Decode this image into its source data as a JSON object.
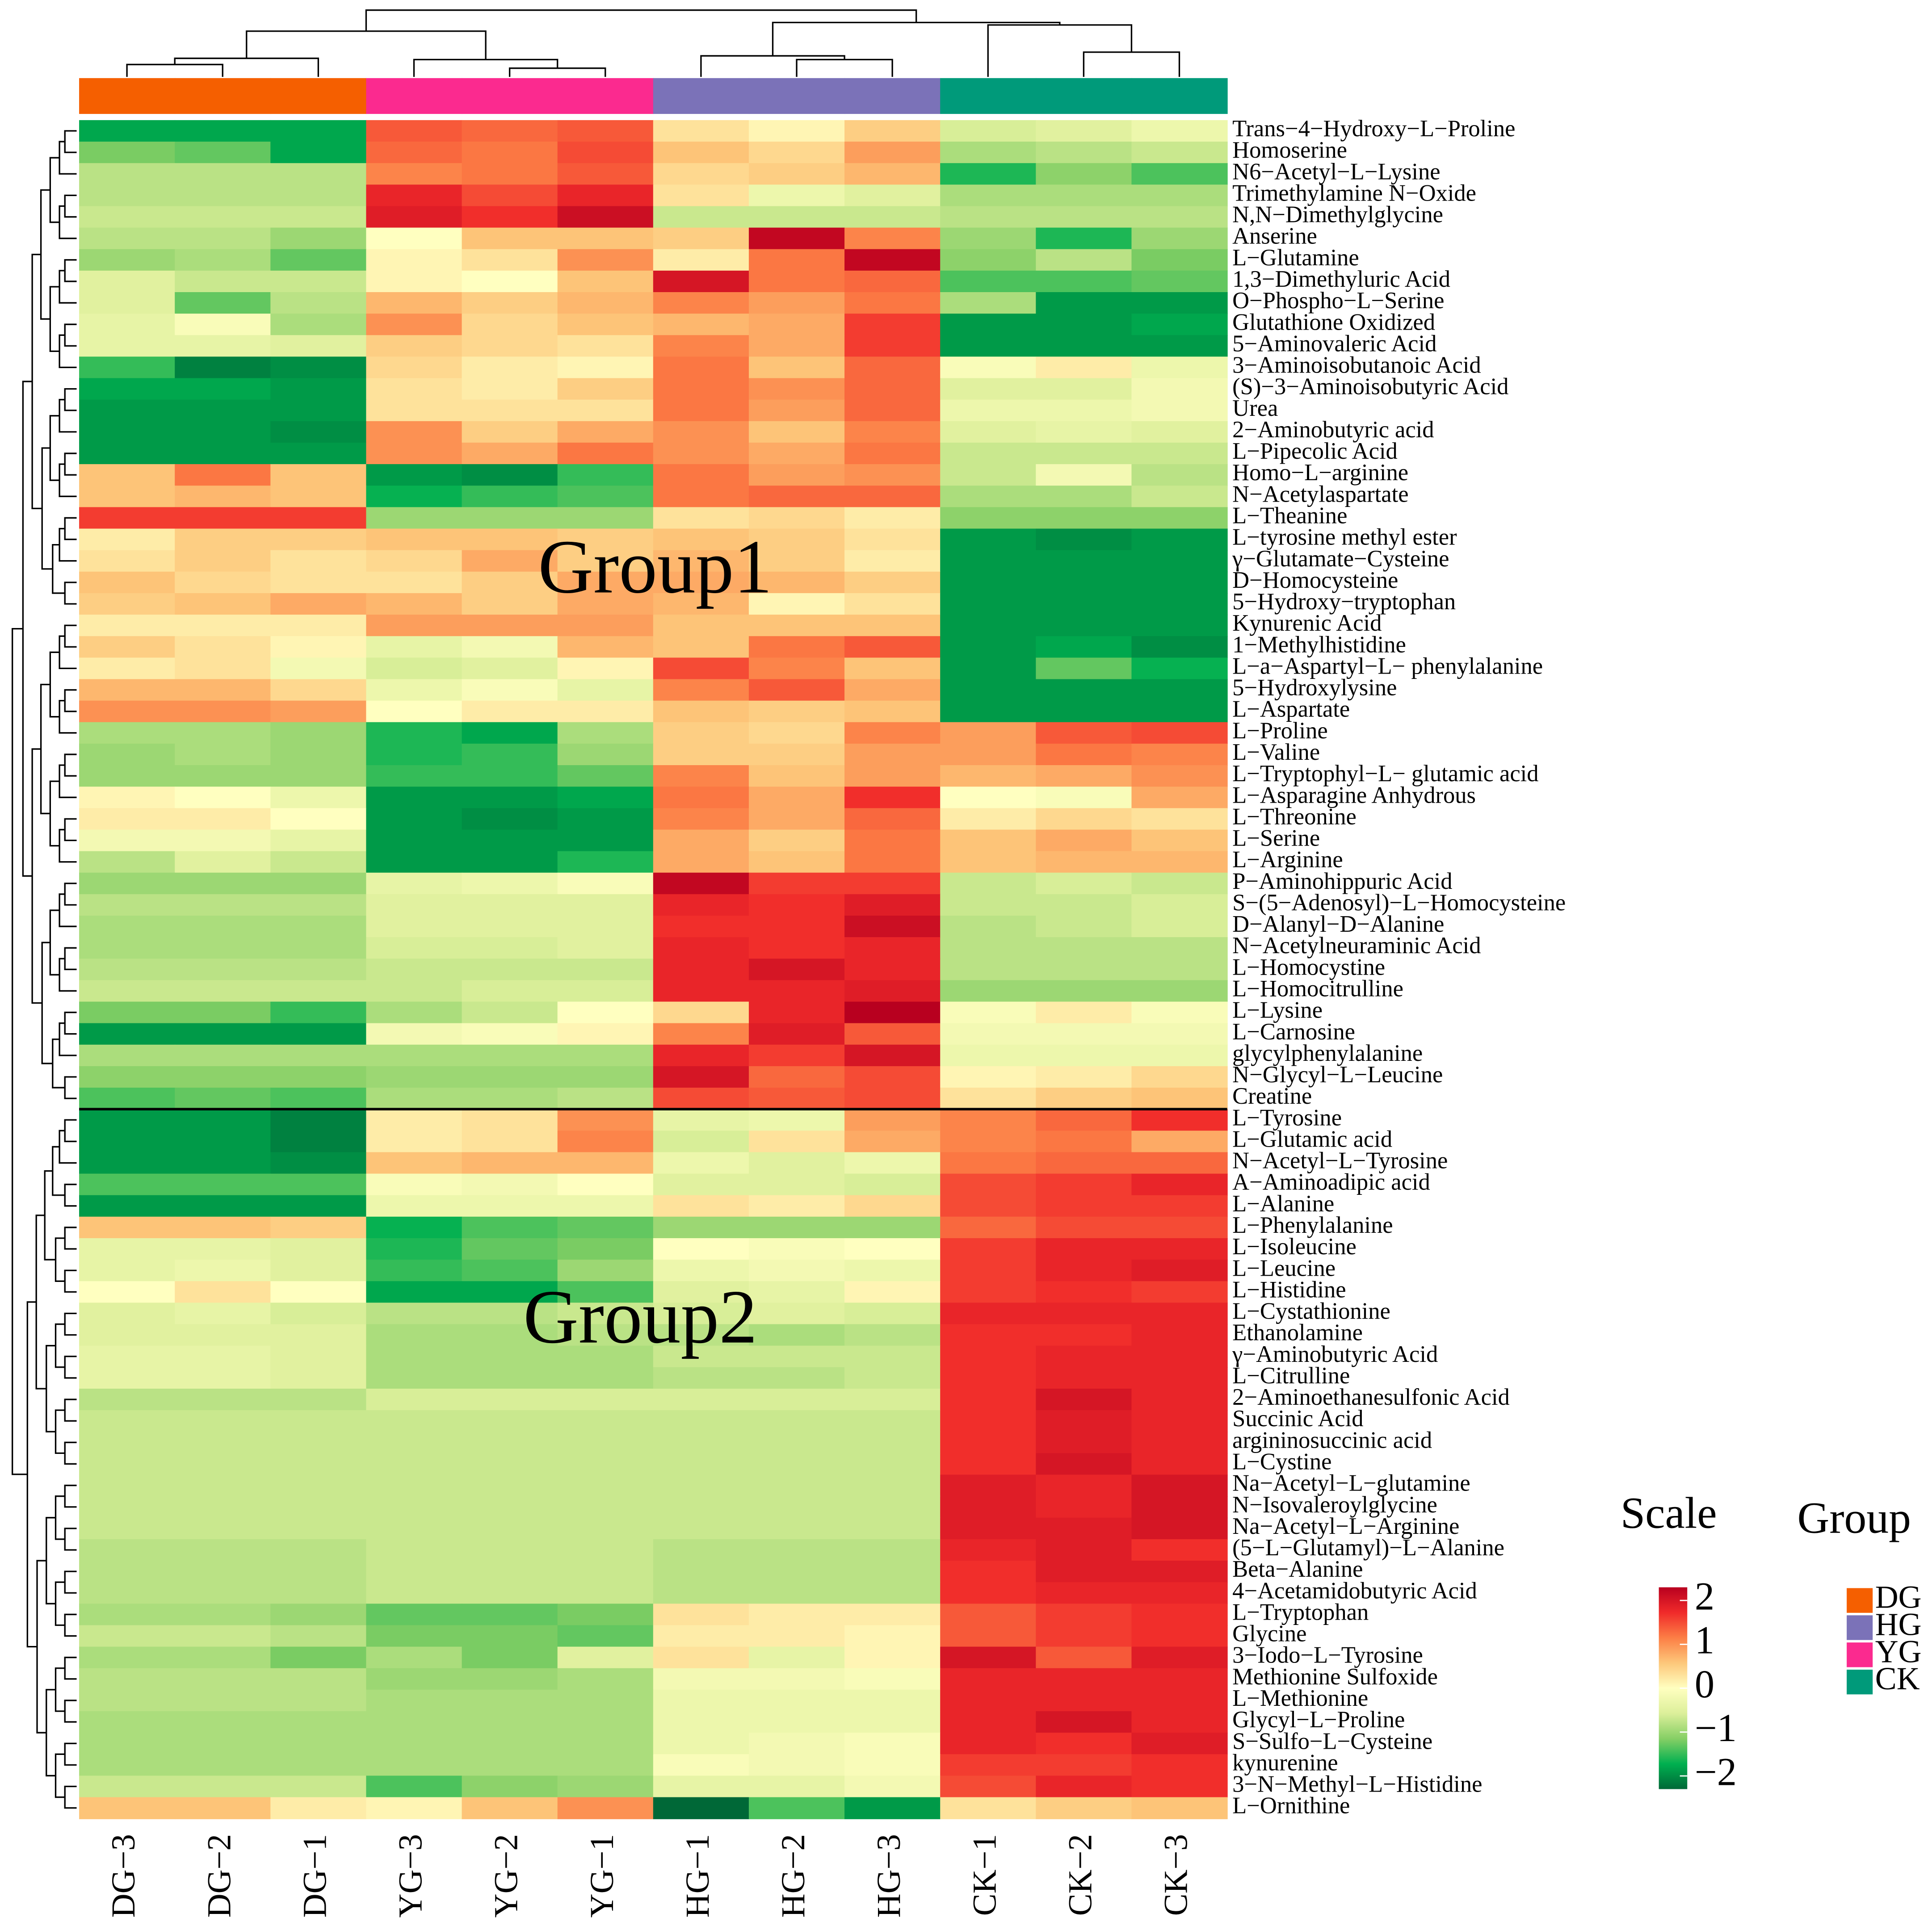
{
  "chart_data": {
    "type": "heatmap",
    "x_categories": [
      "DG−3",
      "DG−2",
      "DG−1",
      "YG−3",
      "YG−2",
      "YG−1",
      "HG−1",
      "HG−2",
      "HG−3",
      "CK−1",
      "CK−2",
      "CK−3"
    ],
    "y_categories": [
      "Trans−4−Hydroxy−L−Proline",
      "Homoserine",
      "N6−Acetyl−L−Lysine",
      "Trimethylamine N−Oxide",
      "N,N−Dimethylglycine",
      "Anserine",
      "L−Glutamine",
      "1,3−Dimethyluric Acid",
      "O−Phospho−L−Serine",
      "Glutathione Oxidized",
      "5−Aminovaleric Acid",
      "3−Aminoisobutanoic Acid",
      "(S)−3−Aminoisobutyric Acid",
      "Urea",
      "2−Aminobutyric acid",
      "L−Pipecolic Acid",
      "Homo−L−arginine",
      "N−Acetylaspartate",
      "L−Theanine",
      "L−tyrosine methyl ester",
      "γ−Glutamate−Cysteine",
      "D−Homocysteine",
      "5−Hydroxy−tryptophan",
      "Kynurenic Acid",
      "1−Methylhistidine",
      "L−a−Aspartyl−L− phenylalanine",
      "5−Hydroxylysine",
      "L−Aspartate",
      "L−Proline",
      "L−Valine",
      "L−Tryptophyl−L− glutamic acid",
      "L−Asparagine Anhydrous",
      "L−Threonine",
      "L−Serine",
      "L−Arginine",
      "P−Aminohippuric Acid",
      "S−(5−Adenosyl)−L−Homocysteine",
      "D−Alanyl−D−Alanine",
      "N−Acetylneuraminic Acid",
      "L−Homocystine",
      "L−Homocitrulline",
      "L−Lysine",
      "L−Carnosine",
      "glycylphenylalanine",
      "N−Glycyl−L−Leucine",
      "Creatine",
      "L−Tyrosine",
      "L−Glutamic acid",
      "N−Acetyl−L−Tyrosine",
      "A−Aminoadipic acid",
      "L−Alanine",
      "L−Phenylalanine",
      "L−Isoleucine",
      "L−Leucine",
      "L−Histidine",
      "L−Cystathionine",
      "Ethanolamine",
      "γ−Aminobutyric Acid",
      "L−Citrulline",
      "2−Aminoethanesulfonic Acid",
      "Succinic Acid",
      "argininosuccinic acid",
      "L−Cystine",
      "Na−Acetyl−L−glutamine",
      "N−Isovaleroylglycine",
      "Na−Acetyl−L−Arginine",
      "(5−L−Glutamyl)−L−Alanine",
      "Beta−Alanine",
      "4−Acetamidobutyric Acid",
      "L−Tryptophan",
      "Glycine",
      "3−Iodo−L−Tyrosine",
      "Methionine Sulfoxide",
      "L−Methionine",
      "Glycyl−L−Proline",
      "S−Sulfo−L−Cysteine",
      "kynurenine",
      "3−N−Methyl−L−Histidine",
      "L−Ornithine"
    ],
    "values": [
      [
        -1.8,
        -1.8,
        -1.8,
        1.4,
        1.3,
        1.4,
        0.3,
        0.1,
        0.5,
        -0.6,
        -0.5,
        -0.3
      ],
      [
        -1.2,
        -1.3,
        -1.8,
        1.3,
        1.2,
        1.5,
        0.6,
        0.4,
        0.9,
        -0.9,
        -0.8,
        -0.7
      ],
      [
        -0.8,
        -0.8,
        -0.8,
        1.1,
        1.2,
        1.4,
        0.4,
        0.5,
        0.7,
        -1.6,
        -1.1,
        -1.4
      ],
      [
        -0.8,
        -0.8,
        -0.8,
        1.8,
        1.5,
        1.8,
        0.3,
        -0.3,
        -0.5,
        -0.9,
        -0.9,
        -0.9
      ],
      [
        -0.7,
        -0.7,
        -0.7,
        1.9,
        1.7,
        2.1,
        -0.7,
        -0.7,
        -0.7,
        -0.8,
        -0.8,
        -0.8
      ],
      [
        -0.8,
        -0.8,
        -1.0,
        0.0,
        0.6,
        0.6,
        0.5,
        2.2,
        1.1,
        -1.0,
        -1.6,
        -1.0
      ],
      [
        -1.0,
        -0.9,
        -1.3,
        0.1,
        0.3,
        1.0,
        0.2,
        1.2,
        2.2,
        -1.1,
        -0.8,
        -1.2
      ],
      [
        -0.5,
        -0.7,
        -0.7,
        0.1,
        0.0,
        0.6,
        2.0,
        1.2,
        1.3,
        -1.4,
        -1.4,
        -1.3
      ],
      [
        -0.5,
        -1.3,
        -0.8,
        0.7,
        0.5,
        0.7,
        1.1,
        0.9,
        1.2,
        -0.9,
        -1.9,
        -1.9
      ],
      [
        -0.4,
        -0.1,
        -0.9,
        1.0,
        0.4,
        0.6,
        0.7,
        0.8,
        1.6,
        -1.9,
        -1.9,
        -1.8
      ],
      [
        -0.4,
        -0.4,
        -0.5,
        0.5,
        0.4,
        0.3,
        1.1,
        0.8,
        1.6,
        -1.9,
        -1.9,
        -1.9
      ],
      [
        -1.5,
        -2.1,
        -2.0,
        0.4,
        0.2,
        0.1,
        1.2,
        0.6,
        1.3,
        -0.1,
        0.2,
        -0.3
      ],
      [
        -1.8,
        -1.8,
        -1.9,
        0.3,
        0.2,
        0.5,
        1.2,
        1.0,
        1.3,
        -0.5,
        -0.5,
        -0.2
      ],
      [
        -1.9,
        -1.9,
        -1.9,
        0.3,
        0.3,
        0.3,
        1.2,
        0.9,
        1.3,
        -0.3,
        -0.3,
        -0.2
      ],
      [
        -1.9,
        -1.9,
        -2.0,
        1.0,
        0.5,
        0.8,
        1.0,
        0.6,
        1.1,
        -0.5,
        -0.4,
        -0.5
      ],
      [
        -1.9,
        -1.9,
        -1.9,
        1.0,
        0.8,
        1.2,
        1.0,
        0.8,
        1.2,
        -0.7,
        -0.7,
        -0.7
      ],
      [
        0.6,
        1.2,
        0.6,
        -1.9,
        -2.0,
        -1.5,
        1.2,
        0.9,
        1.0,
        -0.7,
        -0.2,
        -0.8
      ],
      [
        0.6,
        0.7,
        0.6,
        -1.7,
        -1.5,
        -1.4,
        1.2,
        1.3,
        1.3,
        -0.9,
        -0.9,
        -0.7
      ],
      [
        1.6,
        1.6,
        1.6,
        -1.0,
        -1.0,
        -1.0,
        0.3,
        0.4,
        0.2,
        -1.1,
        -1.1,
        -1.1
      ],
      [
        0.2,
        0.5,
        0.5,
        0.6,
        0.6,
        0.5,
        0.6,
        0.5,
        0.3,
        -1.9,
        -2.0,
        -1.9
      ],
      [
        0.3,
        0.5,
        0.3,
        0.4,
        0.8,
        0.5,
        0.7,
        0.5,
        0.2,
        -1.9,
        -1.9,
        -1.9
      ],
      [
        0.6,
        0.4,
        0.3,
        0.3,
        0.5,
        0.8,
        0.8,
        0.7,
        0.5,
        -1.9,
        -1.9,
        -1.9
      ],
      [
        0.5,
        0.6,
        0.8,
        0.7,
        0.5,
        0.8,
        0.7,
        0.1,
        0.3,
        -1.9,
        -1.9,
        -1.9
      ],
      [
        0.2,
        0.2,
        0.2,
        0.9,
        0.9,
        0.9,
        0.6,
        0.6,
        0.6,
        -1.9,
        -1.9,
        -1.9
      ],
      [
        0.5,
        0.3,
        0.1,
        -0.4,
        -0.2,
        0.7,
        0.6,
        1.2,
        1.4,
        -1.9,
        -1.8,
        -2.0
      ],
      [
        0.2,
        0.3,
        -0.2,
        -0.6,
        -0.5,
        0.1,
        1.5,
        1.1,
        0.6,
        -1.9,
        -1.3,
        -1.7
      ],
      [
        0.7,
        0.7,
        0.4,
        -0.3,
        -0.1,
        -0.4,
        1.1,
        1.4,
        0.8,
        -1.9,
        -1.9,
        -1.9
      ],
      [
        1.0,
        1.0,
        0.9,
        0.0,
        0.2,
        0.2,
        0.6,
        0.5,
        0.6,
        -1.9,
        -1.9,
        -1.9
      ],
      [
        -0.9,
        -0.9,
        -1.0,
        -1.6,
        -1.8,
        -0.9,
        0.5,
        0.4,
        1.1,
        0.9,
        1.4,
        1.5
      ],
      [
        -1.0,
        -0.9,
        -1.0,
        -1.6,
        -1.5,
        -1.0,
        0.5,
        0.5,
        0.9,
        0.9,
        1.2,
        1.1
      ],
      [
        -1.0,
        -1.0,
        -1.0,
        -1.5,
        -1.5,
        -1.3,
        1.1,
        0.6,
        0.9,
        0.7,
        0.8,
        1.0
      ],
      [
        0.1,
        0.0,
        -0.3,
        -1.9,
        -1.9,
        -1.8,
        1.2,
        0.8,
        1.7,
        0.0,
        -0.1,
        0.8
      ],
      [
        0.2,
        0.2,
        0.0,
        -1.9,
        -2.0,
        -1.9,
        1.1,
        0.8,
        1.3,
        0.2,
        0.4,
        0.3
      ],
      [
        -0.2,
        -0.2,
        -0.4,
        -1.9,
        -1.9,
        -1.9,
        0.8,
        0.5,
        1.2,
        0.6,
        0.8,
        0.6
      ],
      [
        -0.8,
        -0.5,
        -0.7,
        -1.9,
        -1.9,
        -1.6,
        0.8,
        0.6,
        1.2,
        0.6,
        0.7,
        0.7
      ],
      [
        -1.0,
        -1.0,
        -1.0,
        -0.4,
        -0.3,
        -0.1,
        2.2,
        1.6,
        1.6,
        -0.7,
        -0.6,
        -0.7
      ],
      [
        -0.8,
        -0.8,
        -0.8,
        -0.5,
        -0.5,
        -0.5,
        1.8,
        1.7,
        1.9,
        -0.7,
        -0.7,
        -0.6
      ],
      [
        -0.9,
        -0.9,
        -0.9,
        -0.5,
        -0.5,
        -0.5,
        1.7,
        1.7,
        2.1,
        -0.8,
        -0.7,
        -0.6
      ],
      [
        -0.9,
        -0.9,
        -0.9,
        -0.6,
        -0.6,
        -0.5,
        1.8,
        1.7,
        1.8,
        -0.8,
        -0.8,
        -0.8
      ],
      [
        -0.8,
        -0.8,
        -0.8,
        -0.7,
        -0.7,
        -0.7,
        1.8,
        2.0,
        1.8,
        -0.8,
        -0.8,
        -0.8
      ],
      [
        -0.7,
        -0.7,
        -0.7,
        -0.7,
        -0.6,
        -0.6,
        1.8,
        1.8,
        1.9,
        -1.0,
        -1.0,
        -1.0
      ],
      [
        -1.2,
        -1.2,
        -1.5,
        -0.9,
        -0.7,
        0.0,
        0.4,
        1.8,
        2.3,
        -0.1,
        0.2,
        -0.1
      ],
      [
        -1.9,
        -1.9,
        -1.9,
        -0.2,
        -0.1,
        0.1,
        1.1,
        1.9,
        1.4,
        -0.2,
        -0.2,
        -0.2
      ],
      [
        -0.9,
        -0.9,
        -0.9,
        -0.9,
        -0.9,
        -0.9,
        1.8,
        1.6,
        2.0,
        -0.3,
        -0.3,
        -0.3
      ],
      [
        -1.1,
        -1.1,
        -1.1,
        -1.0,
        -1.0,
        -1.0,
        2.0,
        1.3,
        1.5,
        0.1,
        0.2,
        0.4
      ],
      [
        -1.4,
        -1.3,
        -1.4,
        -0.9,
        -0.9,
        -0.8,
        1.5,
        1.4,
        1.5,
        0.3,
        0.5,
        0.6
      ],
      [
        -1.9,
        -1.9,
        -2.1,
        0.2,
        0.3,
        1.0,
        -0.4,
        -0.3,
        0.9,
        1.1,
        1.3,
        1.7
      ],
      [
        -1.9,
        -1.9,
        -2.1,
        0.2,
        0.3,
        1.1,
        -0.6,
        0.3,
        0.8,
        1.1,
        1.2,
        0.8
      ],
      [
        -1.9,
        -1.9,
        -2.0,
        0.6,
        0.7,
        0.7,
        -0.3,
        -0.5,
        -0.3,
        1.2,
        1.3,
        1.3
      ],
      [
        -1.4,
        -1.4,
        -1.4,
        -0.1,
        -0.2,
        0.0,
        -0.5,
        -0.5,
        -0.6,
        1.5,
        1.6,
        1.8
      ],
      [
        -1.9,
        -1.9,
        -1.9,
        -0.3,
        -0.3,
        -0.3,
        0.3,
        0.2,
        0.4,
        1.5,
        1.6,
        1.6
      ],
      [
        0.6,
        0.6,
        0.5,
        -1.7,
        -1.4,
        -1.3,
        -1.0,
        -1.0,
        -1.0,
        1.3,
        1.5,
        1.5
      ],
      [
        -0.4,
        -0.4,
        -0.5,
        -1.6,
        -1.3,
        -1.2,
        0.0,
        -0.1,
        0.0,
        1.6,
        1.8,
        1.8
      ],
      [
        -0.4,
        -0.3,
        -0.5,
        -1.5,
        -1.4,
        -1.0,
        -0.3,
        -0.2,
        -0.3,
        1.6,
        1.8,
        1.9
      ],
      [
        0.0,
        0.3,
        0.0,
        -1.8,
        -1.8,
        -1.4,
        -0.5,
        -0.4,
        0.1,
        1.6,
        1.7,
        1.6
      ],
      [
        -0.5,
        -0.4,
        -0.6,
        -0.8,
        -0.8,
        -0.7,
        -0.6,
        -0.5,
        -0.6,
        1.8,
        1.8,
        1.8
      ],
      [
        -0.5,
        -0.5,
        -0.5,
        -0.9,
        -0.9,
        -0.8,
        -0.8,
        -0.9,
        -0.8,
        1.7,
        1.7,
        1.8
      ],
      [
        -0.4,
        -0.4,
        -0.5,
        -0.9,
        -0.9,
        -0.9,
        -0.7,
        -0.7,
        -0.7,
        1.7,
        1.8,
        1.8
      ],
      [
        -0.4,
        -0.4,
        -0.5,
        -0.9,
        -0.9,
        -0.9,
        -0.8,
        -0.8,
        -0.7,
        1.7,
        1.8,
        1.8
      ],
      [
        -0.8,
        -0.8,
        -0.8,
        -0.6,
        -0.6,
        -0.6,
        -0.6,
        -0.6,
        -0.6,
        1.7,
        2.0,
        1.8
      ],
      [
        -0.7,
        -0.7,
        -0.7,
        -0.7,
        -0.7,
        -0.7,
        -0.7,
        -0.7,
        -0.7,
        1.7,
        1.9,
        1.8
      ],
      [
        -0.7,
        -0.7,
        -0.7,
        -0.7,
        -0.7,
        -0.7,
        -0.7,
        -0.7,
        -0.7,
        1.7,
        1.9,
        1.8
      ],
      [
        -0.7,
        -0.7,
        -0.7,
        -0.7,
        -0.7,
        -0.7,
        -0.7,
        -0.7,
        -0.7,
        1.7,
        2.0,
        1.8
      ],
      [
        -0.7,
        -0.7,
        -0.7,
        -0.7,
        -0.7,
        -0.7,
        -0.7,
        -0.7,
        -0.7,
        1.9,
        1.8,
        2.0
      ],
      [
        -0.7,
        -0.7,
        -0.7,
        -0.7,
        -0.7,
        -0.7,
        -0.7,
        -0.7,
        -0.7,
        1.9,
        1.8,
        2.0
      ],
      [
        -0.7,
        -0.7,
        -0.7,
        -0.7,
        -0.7,
        -0.7,
        -0.7,
        -0.7,
        -0.7,
        1.9,
        1.9,
        2.0
      ],
      [
        -0.8,
        -0.8,
        -0.8,
        -0.7,
        -0.7,
        -0.7,
        -0.8,
        -0.8,
        -0.8,
        1.8,
        1.9,
        1.7
      ],
      [
        -0.8,
        -0.8,
        -0.8,
        -0.7,
        -0.7,
        -0.7,
        -0.8,
        -0.8,
        -0.8,
        1.7,
        1.9,
        1.9
      ],
      [
        -0.8,
        -0.8,
        -0.8,
        -0.7,
        -0.7,
        -0.7,
        -0.8,
        -0.8,
        -0.8,
        1.7,
        1.8,
        1.8
      ],
      [
        -0.9,
        -0.9,
        -1.0,
        -1.3,
        -1.3,
        -1.2,
        0.3,
        0.2,
        0.2,
        1.4,
        1.6,
        1.7
      ],
      [
        -0.7,
        -0.7,
        -0.8,
        -1.2,
        -1.2,
        -1.3,
        0.2,
        0.2,
        0.1,
        1.4,
        1.6,
        1.7
      ],
      [
        -0.9,
        -0.9,
        -1.2,
        -0.9,
        -1.2,
        -0.5,
        0.3,
        -0.4,
        0.1,
        2.0,
        1.4,
        1.9
      ],
      [
        -0.8,
        -0.8,
        -0.8,
        -1.0,
        -1.0,
        -0.9,
        -0.2,
        -0.2,
        -0.1,
        1.8,
        1.8,
        1.8
      ],
      [
        -0.8,
        -0.8,
        -0.8,
        -0.9,
        -0.9,
        -0.9,
        -0.3,
        -0.3,
        -0.3,
        1.8,
        1.8,
        1.8
      ],
      [
        -0.9,
        -0.9,
        -0.9,
        -0.9,
        -0.9,
        -0.9,
        -0.3,
        -0.3,
        -0.3,
        1.8,
        2.0,
        1.8
      ],
      [
        -0.9,
        -0.9,
        -0.9,
        -0.9,
        -0.9,
        -0.9,
        -0.3,
        -0.2,
        -0.1,
        1.8,
        1.7,
        1.9
      ],
      [
        -0.9,
        -0.9,
        -0.9,
        -0.9,
        -0.9,
        -0.9,
        -0.1,
        -0.2,
        -0.1,
        1.6,
        1.6,
        1.7
      ],
      [
        -0.7,
        -0.7,
        -0.7,
        -1.4,
        -1.1,
        -1.0,
        -0.4,
        -0.4,
        -0.2,
        1.5,
        1.8,
        1.7
      ],
      [
        0.6,
        0.6,
        0.2,
        0.1,
        0.6,
        1.0,
        -2.3,
        -1.4,
        -1.9,
        0.3,
        0.5,
        0.6
      ]
    ],
    "zlim": [
      -2.3,
      2.3
    ],
    "colors": [
      "#006837",
      "#00b050",
      "#86cf65",
      "#dcef9a",
      "#ffffc0",
      "#fdc77a",
      "#fc7e45",
      "#f02a2a",
      "#b8001f"
    ],
    "colorbar_title": "Scale",
    "zticks": [
      2,
      1,
      0,
      {
        "value": -1,
        "label": "−1"
      },
      {
        "value": -2,
        "label": "−2"
      }
    ],
    "group_legend_title": "Group",
    "groups": [
      {
        "name": "DG",
        "color": "#f55f00"
      },
      {
        "name": "HG",
        "color": "#7b72b8"
      },
      {
        "name": "YG",
        "color": "#fb2a8f"
      },
      {
        "name": "CK",
        "color": "#009a7a"
      }
    ],
    "column_groups": [
      0,
      0,
      0,
      2,
      2,
      2,
      1,
      1,
      1,
      3,
      3,
      3
    ],
    "annotations": [
      "Group1",
      "Group2"
    ]
  }
}
